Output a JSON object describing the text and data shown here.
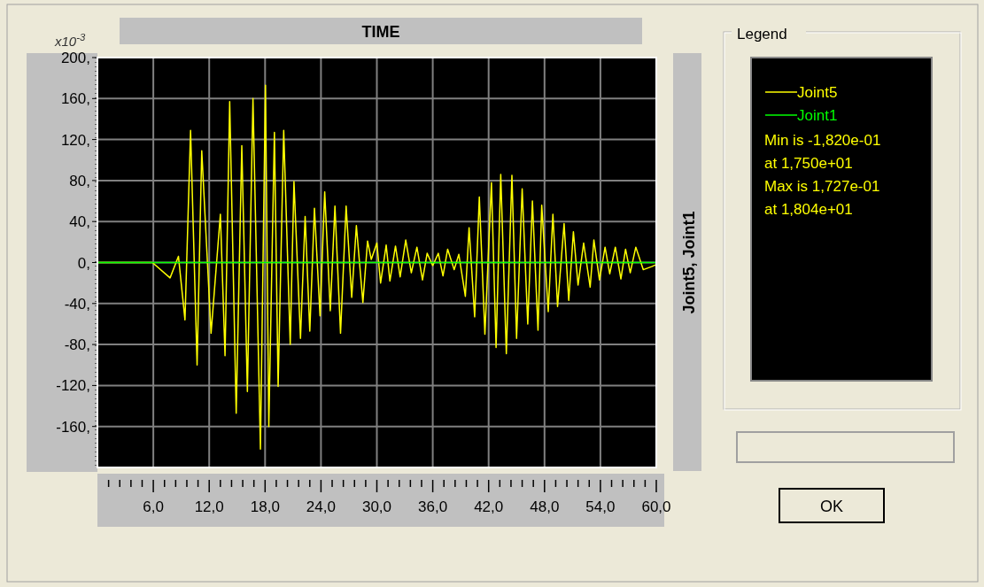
{
  "chart_data": {
    "type": "line",
    "xlabel": "TIME",
    "ylabel": "Joint5, Joint1",
    "legend_title": "Legend",
    "legend": "right",
    "grid": true,
    "line_style": "solid",
    "annotations": [
      "x10$^{-3}$",
      "Min is -1,820e-01",
      "at 1,750e+01",
      "Max is 1,727e-01",
      "at 1,804e+01",
      "OK"
    ],
    "xlim": [
      0,
      60
    ],
    "ylim": [
      -200,
      200
    ],
    "xticks": [
      {
        "value": 6,
        "label": "6,0"
      },
      {
        "value": 12,
        "label": "12,0"
      },
      {
        "value": 18,
        "label": "18,0"
      },
      {
        "value": 24,
        "label": "24,0"
      },
      {
        "value": 30,
        "label": "30,0"
      },
      {
        "value": 36,
        "label": "36,0"
      },
      {
        "value": 42,
        "label": "42,0"
      },
      {
        "value": 48,
        "label": "48,0"
      },
      {
        "value": 54,
        "label": "54,0"
      },
      {
        "value": 60,
        "label": "60,0"
      }
    ],
    "yticks": [
      {
        "value": -160,
        "label": "-160,"
      },
      {
        "value": -120,
        "label": "-120,"
      },
      {
        "value": -80,
        "label": "-80,"
      },
      {
        "value": -40,
        "label": "-40,"
      },
      {
        "value": 0,
        "label": "0,"
      },
      {
        "value": 40,
        "label": "40,"
      },
      {
        "value": 80,
        "label": "80,"
      },
      {
        "value": 120,
        "label": "120,"
      },
      {
        "value": 160,
        "label": "160,"
      },
      {
        "value": 200,
        "label": "200,"
      }
    ],
    "series": [
      {
        "name": "Joint5",
        "color": "#ffff00",
        "x": [
          0,
          5.9,
          7.8,
          8.7,
          9.4,
          10.0,
          10.7,
          11.2,
          12.2,
          13.2,
          13.7,
          14.2,
          14.9,
          15.5,
          16.1,
          16.7,
          17.5,
          18.04,
          18.4,
          19.0,
          19.4,
          20.0,
          20.7,
          21.1,
          21.8,
          22.3,
          22.8,
          23.3,
          23.9,
          24.4,
          25.0,
          25.5,
          26.1,
          26.7,
          27.3,
          27.8,
          28.5,
          29.0,
          29.4,
          30.0,
          30.4,
          31.0,
          31.4,
          32.0,
          32.5,
          33.1,
          33.7,
          34.3,
          34.9,
          35.4,
          36.0,
          36.6,
          37.1,
          37.6,
          38.3,
          38.8,
          39.5,
          39.9,
          40.5,
          41.0,
          41.6,
          42.3,
          42.8,
          43.3,
          43.9,
          44.5,
          45.0,
          45.6,
          46.2,
          46.7,
          47.3,
          47.7,
          48.4,
          48.9,
          49.4,
          50.1,
          50.6,
          51.1,
          51.6,
          52.2,
          52.9,
          53.3,
          53.9,
          54.5,
          55.0,
          55.6,
          56.2,
          56.7,
          57.2,
          57.8,
          58.6,
          59.5,
          60
        ],
        "values": [
          0,
          0,
          -15,
          6,
          -56,
          129,
          -100,
          109,
          -69,
          47,
          -91,
          157,
          -147,
          114,
          -126,
          160,
          -182,
          173,
          -160,
          127,
          -121,
          129,
          -80,
          79,
          -74,
          45,
          -67,
          53,
          -52,
          69,
          -47,
          55,
          -69,
          55,
          -34,
          36,
          -39,
          21,
          3,
          19,
          -20,
          17,
          -18,
          16,
          -14,
          22,
          -10,
          15,
          -17,
          9,
          -3,
          9,
          -13,
          13,
          -7,
          8,
          -33,
          34,
          -53,
          64,
          -70,
          78,
          -83,
          86,
          -89,
          85,
          -74,
          72,
          -60,
          60,
          -66,
          56,
          -48,
          47,
          -43,
          38,
          -37,
          30,
          -22,
          19,
          -24,
          22,
          -17,
          15,
          -11,
          15,
          -16,
          13,
          -10,
          15,
          -7,
          -4,
          -2
        ]
      },
      {
        "name": "Joint1",
        "color": "#00ff00",
        "x": [
          0,
          60
        ],
        "values": [
          0,
          0
        ]
      }
    ]
  }
}
